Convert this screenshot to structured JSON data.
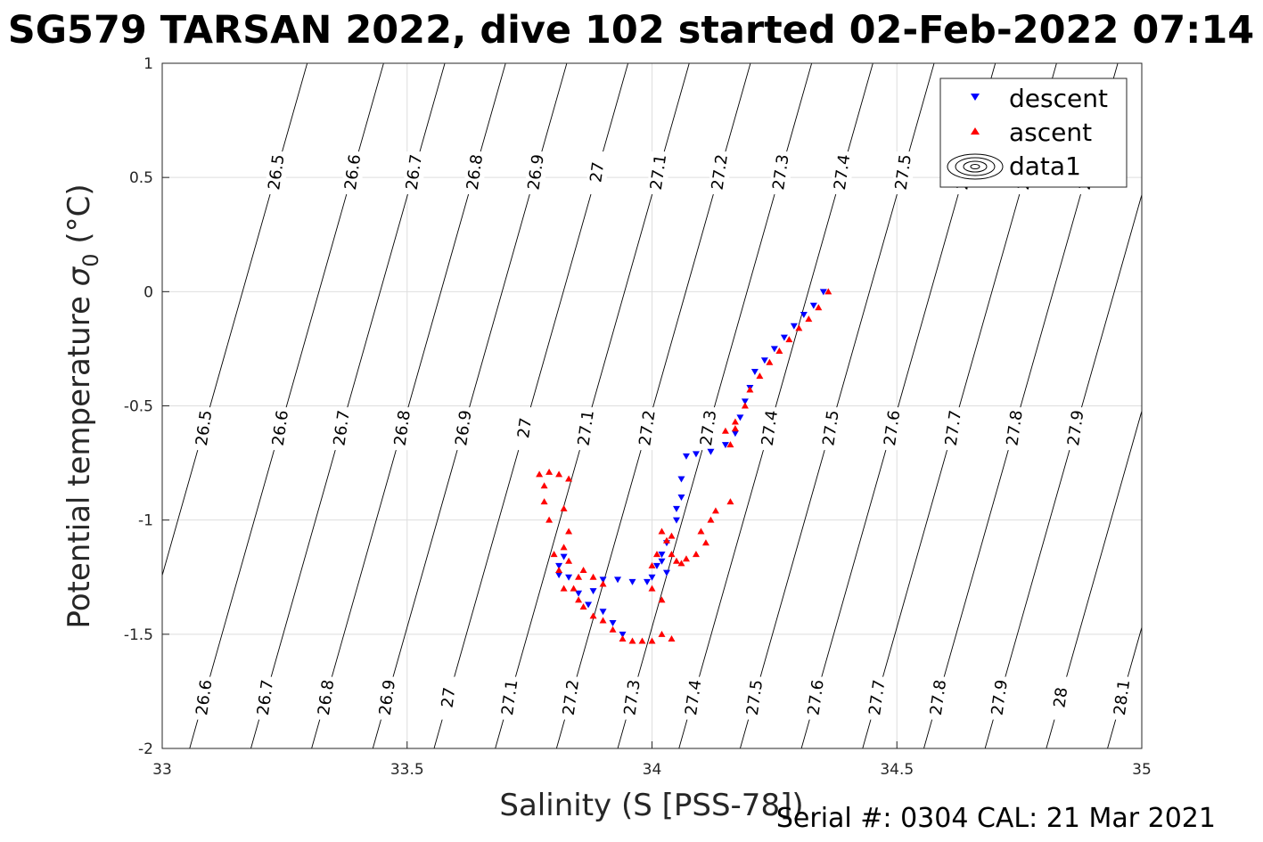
{
  "chart_data": {
    "type": "scatter",
    "title": "SG579 TARSAN 2022, dive 102 started 02-Feb-2022 07:14",
    "xlabel": "Salinity (S [PSS-78])",
    "ylabel_main": "Potential temperature ",
    "ylabel_sigma": "σ",
    "ylabel_sub": "0",
    "ylabel_unit": " (°C)",
    "xlim": [
      33,
      35
    ],
    "ylim": [
      -2,
      1
    ],
    "xticks": [
      "33",
      "33.5",
      "34",
      "34.5",
      "35"
    ],
    "yticks": [
      "1",
      "0.5",
      "0",
      "-0.5",
      "-1",
      "-1.5",
      "-2"
    ],
    "grid": true,
    "legend_position": "top-right",
    "legend": [
      "descent",
      "ascent",
      "data1"
    ],
    "footer": "Serial #: 0304  CAL: 21 Mar 2021",
    "isopycnals": {
      "levels": [
        "26.5",
        "26.6",
        "26.7",
        "26.8",
        "26.9",
        "27",
        "27.1",
        "27.2",
        "27.3",
        "27.4",
        "27.5",
        "27.6",
        "27.7",
        "27.8",
        "27.9",
        "28",
        "28.1"
      ],
      "salinity_at_minus2": [
        32.9,
        33.056,
        33.181,
        33.305,
        33.43,
        33.555,
        33.68,
        33.805,
        33.93,
        34.055,
        34.18,
        34.305,
        34.43,
        34.555,
        34.68,
        34.805,
        34.93
      ],
      "slope_psu_per_degC": 0.132,
      "label_y_bands": [
        0.52,
        -0.6,
        -1.78
      ]
    },
    "series": [
      {
        "name": "descent",
        "color": "#0000ff",
        "marker": "triangle-down",
        "points": [
          [
            34.35,
            0.0
          ],
          [
            34.33,
            -0.06
          ],
          [
            34.31,
            -0.1
          ],
          [
            34.29,
            -0.15
          ],
          [
            34.27,
            -0.2
          ],
          [
            34.25,
            -0.25
          ],
          [
            34.23,
            -0.3
          ],
          [
            34.21,
            -0.35
          ],
          [
            34.2,
            -0.42
          ],
          [
            34.19,
            -0.48
          ],
          [
            34.18,
            -0.55
          ],
          [
            34.17,
            -0.62
          ],
          [
            34.15,
            -0.67
          ],
          [
            34.12,
            -0.7
          ],
          [
            34.09,
            -0.71
          ],
          [
            34.07,
            -0.72
          ],
          [
            34.06,
            -0.82
          ],
          [
            34.06,
            -0.9
          ],
          [
            34.05,
            -0.95
          ],
          [
            34.05,
            -1.0
          ],
          [
            34.03,
            -1.1
          ],
          [
            34.02,
            -1.15
          ],
          [
            34.01,
            -1.2
          ],
          [
            34.0,
            -1.25
          ],
          [
            33.99,
            -1.27
          ],
          [
            33.96,
            -1.27
          ],
          [
            33.93,
            -1.26
          ],
          [
            33.9,
            -1.26
          ],
          [
            33.88,
            -1.31
          ],
          [
            33.87,
            -1.37
          ],
          [
            33.9,
            -1.4
          ],
          [
            33.92,
            -1.45
          ],
          [
            33.94,
            -1.5
          ],
          [
            33.85,
            -1.32
          ],
          [
            33.83,
            -1.25
          ],
          [
            33.81,
            -1.24
          ],
          [
            33.81,
            -1.2
          ],
          [
            33.82,
            -1.16
          ],
          [
            34.03,
            -1.23
          ],
          [
            34.02,
            -1.18
          ]
        ]
      },
      {
        "name": "ascent",
        "color": "#ff0000",
        "marker": "triangle-up",
        "points": [
          [
            34.36,
            0.0
          ],
          [
            34.34,
            -0.07
          ],
          [
            34.32,
            -0.12
          ],
          [
            34.3,
            -0.16
          ],
          [
            34.28,
            -0.21
          ],
          [
            34.26,
            -0.26
          ],
          [
            34.24,
            -0.31
          ],
          [
            34.22,
            -0.37
          ],
          [
            34.2,
            -0.43
          ],
          [
            34.19,
            -0.5
          ],
          [
            34.17,
            -0.57
          ],
          [
            34.15,
            -0.61
          ],
          [
            34.17,
            -0.6
          ],
          [
            34.16,
            -0.67
          ],
          [
            34.16,
            -0.92
          ],
          [
            34.13,
            -0.96
          ],
          [
            34.12,
            -1.0
          ],
          [
            34.1,
            -1.05
          ],
          [
            34.11,
            -1.1
          ],
          [
            34.09,
            -1.15
          ],
          [
            34.07,
            -1.17
          ],
          [
            34.06,
            -1.19
          ],
          [
            34.05,
            -1.18
          ],
          [
            34.04,
            -1.15
          ],
          [
            34.03,
            -1.09
          ],
          [
            34.02,
            -1.05
          ],
          [
            34.04,
            -1.07
          ],
          [
            34.01,
            -1.15
          ],
          [
            34.0,
            -1.2
          ],
          [
            34.0,
            -1.3
          ],
          [
            34.02,
            -1.35
          ],
          [
            34.04,
            -1.52
          ],
          [
            34.02,
            -1.5
          ],
          [
            34.0,
            -1.53
          ],
          [
            33.98,
            -1.53
          ],
          [
            33.96,
            -1.53
          ],
          [
            33.94,
            -1.52
          ],
          [
            33.92,
            -1.48
          ],
          [
            33.9,
            -1.44
          ],
          [
            33.88,
            -1.42
          ],
          [
            33.86,
            -1.38
          ],
          [
            33.85,
            -1.35
          ],
          [
            33.84,
            -1.3
          ],
          [
            33.86,
            -1.22
          ],
          [
            33.88,
            -1.25
          ],
          [
            33.9,
            -1.28
          ],
          [
            33.82,
            -1.3
          ],
          [
            33.81,
            -1.22
          ],
          [
            33.8,
            -1.15
          ],
          [
            33.79,
            -1.0
          ],
          [
            33.78,
            -0.92
          ],
          [
            33.78,
            -0.85
          ],
          [
            33.77,
            -0.8
          ],
          [
            33.79,
            -0.79
          ],
          [
            33.81,
            -0.8
          ],
          [
            33.83,
            -0.82
          ],
          [
            33.82,
            -0.95
          ],
          [
            33.83,
            -1.05
          ],
          [
            33.82,
            -1.12
          ],
          [
            33.83,
            -1.18
          ],
          [
            33.85,
            -1.25
          ]
        ]
      }
    ]
  }
}
